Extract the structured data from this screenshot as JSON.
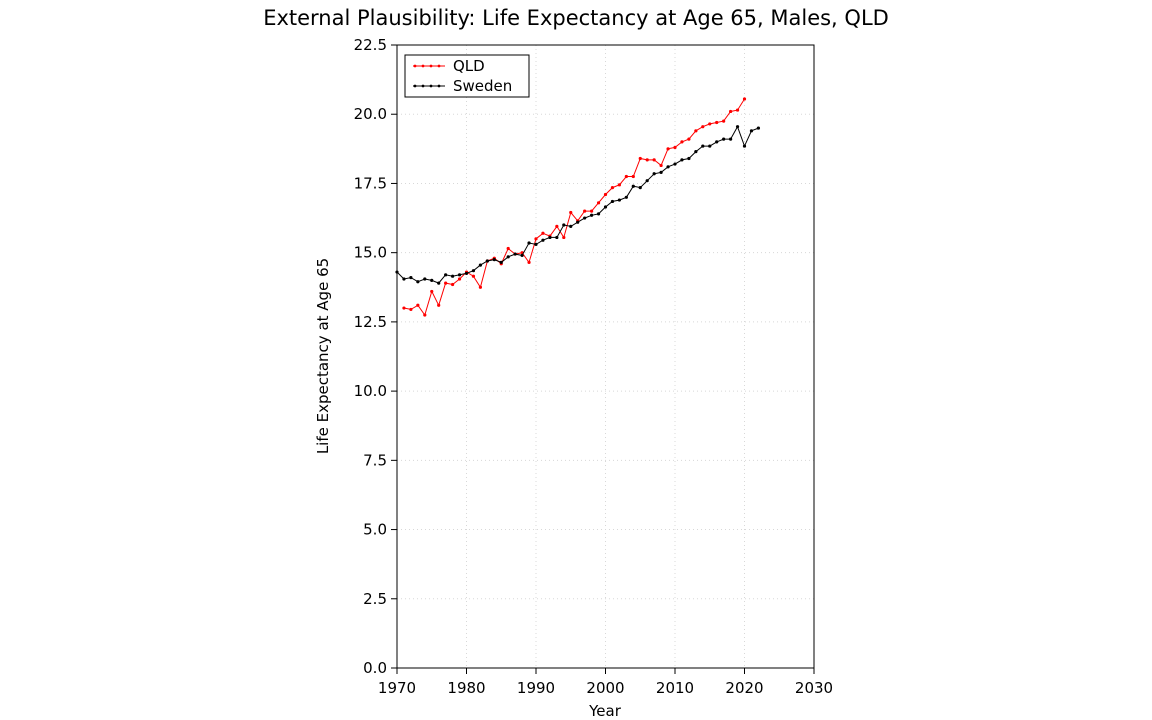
{
  "chart_data": {
    "type": "line",
    "title": "External Plausibility: Life Expectancy at Age 65, Males, QLD",
    "xlabel": "Year",
    "ylabel": "Life Expectancy at Age 65",
    "xlim": [
      1970,
      2030
    ],
    "ylim": [
      0,
      22.5
    ],
    "xticks": [
      1970,
      1980,
      1990,
      2000,
      2010,
      2020,
      2030
    ],
    "yticks": [
      "0.0",
      "2.5",
      "5.0",
      "7.5",
      "10.0",
      "12.5",
      "15.0",
      "17.5",
      "20.0",
      "22.5"
    ],
    "grid": true,
    "legend_position": "top-left",
    "series": [
      {
        "name": "QLD",
        "color": "#ff0000",
        "x": [
          1971,
          1972,
          1973,
          1974,
          1975,
          1976,
          1977,
          1978,
          1979,
          1980,
          1981,
          1982,
          1983,
          1984,
          1985,
          1986,
          1987,
          1988,
          1989,
          1990,
          1991,
          1992,
          1993,
          1994,
          1995,
          1996,
          1997,
          1998,
          1999,
          2000,
          2001,
          2002,
          2003,
          2004,
          2005,
          2006,
          2007,
          2008,
          2009,
          2010,
          2011,
          2012,
          2013,
          2014,
          2015,
          2016,
          2017,
          2018,
          2019,
          2020
        ],
        "y": [
          13.0,
          12.95,
          13.1,
          12.75,
          13.6,
          13.1,
          13.9,
          13.85,
          14.05,
          14.3,
          14.15,
          13.75,
          14.7,
          14.8,
          14.6,
          15.15,
          14.95,
          15.0,
          14.65,
          15.5,
          15.7,
          15.6,
          15.95,
          15.55,
          16.45,
          16.15,
          16.5,
          16.5,
          16.8,
          17.1,
          17.35,
          17.45,
          17.75,
          17.75,
          18.4,
          18.35,
          18.35,
          18.15,
          18.75,
          18.8,
          19.0,
          19.1,
          19.4,
          19.55,
          19.65,
          19.7,
          19.75,
          20.1,
          20.15,
          20.55
        ]
      },
      {
        "name": "Sweden",
        "color": "#000000",
        "x": [
          1970,
          1971,
          1972,
          1973,
          1974,
          1975,
          1976,
          1977,
          1978,
          1979,
          1980,
          1981,
          1982,
          1983,
          1984,
          1985,
          1986,
          1987,
          1988,
          1989,
          1990,
          1991,
          1992,
          1993,
          1994,
          1995,
          1996,
          1997,
          1998,
          1999,
          2000,
          2001,
          2002,
          2003,
          2004,
          2005,
          2006,
          2007,
          2008,
          2009,
          2010,
          2011,
          2012,
          2013,
          2014,
          2015,
          2016,
          2017,
          2018,
          2019,
          2020,
          2021,
          2022
        ],
        "y": [
          14.3,
          14.05,
          14.1,
          13.95,
          14.05,
          14.0,
          13.9,
          14.2,
          14.15,
          14.2,
          14.25,
          14.35,
          14.55,
          14.7,
          14.75,
          14.65,
          14.85,
          14.95,
          14.9,
          15.35,
          15.3,
          15.45,
          15.55,
          15.55,
          16.0,
          15.95,
          16.1,
          16.25,
          16.35,
          16.4,
          16.65,
          16.85,
          16.9,
          17.0,
          17.4,
          17.35,
          17.6,
          17.85,
          17.9,
          18.1,
          18.2,
          18.35,
          18.4,
          18.65,
          18.85,
          18.85,
          19.0,
          19.1,
          19.1,
          19.55,
          18.85,
          19.4,
          19.5
        ]
      }
    ]
  }
}
